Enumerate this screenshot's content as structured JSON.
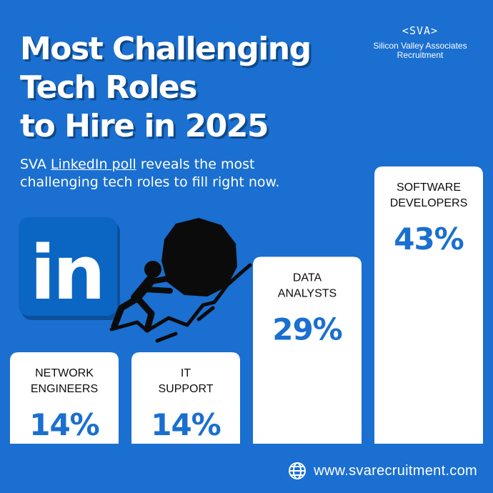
{
  "colors": {
    "background": "#1a6fd0",
    "bar_fill": "#ffffff",
    "value_text": "#1a6fd0",
    "label_text": "#0d0d0d",
    "linkedin_blue": "#0a66c2"
  },
  "title_lines": [
    "Most Challenging",
    "Tech Roles",
    "to Hire in 2025"
  ],
  "subtitle": {
    "prefix": "SVA ",
    "link": "LinkedIn poll",
    "line1_rest": " reveals the most",
    "line2": "challenging tech roles to fill right now."
  },
  "brand": {
    "logo": "<SVA>",
    "name": "Silicon Valley Associates",
    "sub": "Recruitment"
  },
  "icons": {
    "linkedin": "linkedin-logo-icon",
    "climber": "person-pushing-boulder-icon",
    "globe": "globe-icon"
  },
  "linkedin_logo_text": "in",
  "footer": {
    "url": "www.svarecruitment.com"
  },
  "chart_data": {
    "type": "bar",
    "categories": [
      [
        "NETWORK",
        "ENGINEERS"
      ],
      [
        "IT",
        "SUPPORT"
      ],
      [
        "DATA",
        "ANALYSTS"
      ],
      [
        "SOFTWARE",
        "DEVELOPERS"
      ]
    ],
    "values": [
      14,
      14,
      29,
      43
    ],
    "value_labels": [
      "14%",
      "14%",
      "29%",
      "43%"
    ],
    "unit": "%",
    "ylim": [
      0,
      43
    ]
  }
}
